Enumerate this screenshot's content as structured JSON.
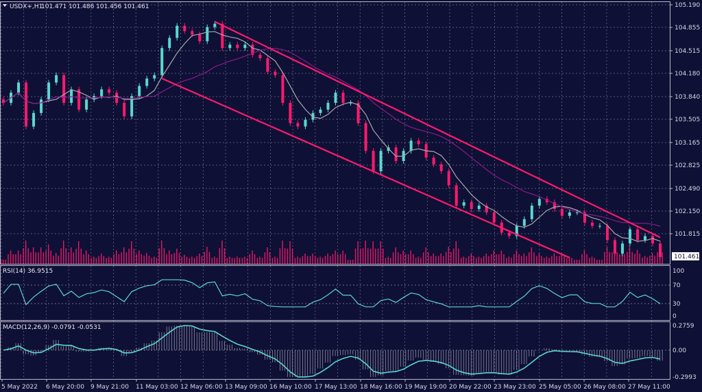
{
  "header": {
    "symbol_label": "USDX+,H1",
    "ohlc": "101.471 101.486 101.456 101.461"
  },
  "colors": {
    "background": "#0f1035",
    "bull": "#5ad8cf",
    "bear": "#ff1a6e",
    "ma_fast": "#a8a8b0",
    "ma_slow": "#8a1a8a",
    "channel": "#ff1a6e",
    "indicator": "#5ad8cf",
    "grid": "#8a8aa8"
  },
  "chart_data": [
    {
      "type": "candlestick",
      "title": "USDX+,H1",
      "ylim": [
        101.45,
        105.19
      ],
      "y_ticks": [
        "105.190",
        "104.855",
        "104.515",
        "104.180",
        "103.840",
        "103.505",
        "103.165",
        "102.825",
        "102.490",
        "102.150",
        "101.815"
      ],
      "current_price": "101.461",
      "x_ticks": [
        "5 May 2022",
        "6 May 20:00",
        "9 May 21:00",
        "11 May 03:00",
        "12 May 06:00",
        "13 May 09:00",
        "16 May 10:00",
        "17 May 13:00",
        "18 May 16:00",
        "19 May 19:00",
        "20 May 22:00",
        "23 May 23:00",
        "25 May 05:00",
        "26 May 08:00",
        "27 May 11:00"
      ],
      "closes": [
        103.74,
        103.89,
        104.04,
        103.39,
        103.59,
        103.79,
        104.04,
        104.15,
        103.74,
        103.94,
        103.64,
        103.79,
        103.84,
        103.94,
        103.89,
        103.74,
        103.54,
        103.84,
        103.99,
        104.1,
        104.15,
        104.55,
        104.7,
        104.88,
        104.8,
        104.75,
        104.65,
        104.86,
        104.91,
        104.55,
        104.6,
        104.55,
        104.6,
        104.45,
        104.4,
        104.2,
        104.15,
        103.74,
        103.44,
        103.39,
        103.49,
        103.59,
        103.64,
        103.74,
        103.89,
        103.74,
        103.74,
        103.44,
        103.03,
        102.73,
        103.03,
        103.08,
        102.88,
        103.03,
        103.18,
        103.13,
        102.93,
        102.83,
        102.73,
        102.52,
        102.22,
        102.27,
        102.17,
        102.22,
        102.12,
        101.97,
        101.82,
        101.77,
        101.92,
        102.02,
        102.22,
        102.32,
        102.27,
        102.17,
        102.07,
        102.12,
        102.12,
        101.97,
        101.92,
        101.92,
        101.71,
        101.51,
        101.66,
        101.87,
        101.71,
        101.77,
        101.66,
        101.46
      ],
      "moving_averages": [
        "fast",
        "slow"
      ],
      "trendlines": [
        {
          "name": "channel-upper",
          "from": [
            28,
            104.94
          ],
          "to": [
            87,
            101.75
          ]
        },
        {
          "name": "channel-lower",
          "from": [
            21,
            104.1
          ],
          "to": [
            75,
            101.45
          ]
        }
      ],
      "grid": true
    },
    {
      "type": "line",
      "title": "RSI(14) 36.9515",
      "ylim": [
        0,
        100
      ],
      "y_ticks": [
        "100",
        "70",
        "30",
        "0"
      ],
      "levels": [
        70,
        30
      ]
    },
    {
      "type": "bar+line",
      "title": "MACD(12,26,9) -0.0791 -0.0531",
      "ylim": [
        -0.2993,
        0.2759
      ],
      "y_ticks": [
        "0.2759",
        "0.00",
        "-0.2993"
      ]
    }
  ]
}
